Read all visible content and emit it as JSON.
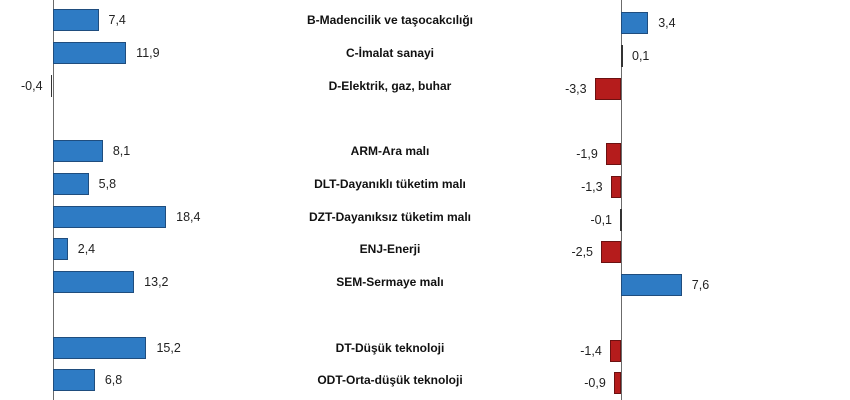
{
  "chart_data": {
    "type": "bar",
    "orientation": "horizontal",
    "title": "",
    "categories": [
      "B-Madencilik ve taşocakcılığı",
      "C-İmalat sanayi",
      "D-Elektrik, gaz, buhar",
      "",
      "ARM-Ara malı",
      "DLT-Dayanıklı tüketim malı",
      "DZT-Dayanıksız tüketim malı",
      "ENJ-Enerji",
      "SEM-Sermaye malı",
      "",
      "DT-Düşük teknoloji",
      "ODT-Orta-düşük teknoloji"
    ],
    "series": [
      {
        "name": "left panel",
        "values": [
          7.4,
          11.9,
          -0.4,
          null,
          8.1,
          5.8,
          18.4,
          2.4,
          13.2,
          null,
          15.2,
          6.8
        ],
        "labels": [
          "7,4",
          "11,9",
          "-0,4",
          "",
          "8,1",
          "5,8",
          "18,4",
          "2,4",
          "13,2",
          "",
          "15,2",
          "6,8"
        ]
      },
      {
        "name": "right panel",
        "values": [
          3.4,
          0.1,
          -3.3,
          null,
          -1.9,
          -1.3,
          -0.1,
          -2.5,
          7.6,
          null,
          -1.4,
          -0.9
        ],
        "labels": [
          "3,4",
          "0,1",
          "-3,3",
          "",
          "-1,9",
          "-1,3",
          "-0,1",
          "-2,5",
          "7,6",
          "",
          "-1,4",
          "-0,9"
        ]
      }
    ],
    "colors": {
      "positive": "#2e7bc4",
      "negative": "#b51c1c"
    },
    "xlabel": "",
    "ylabel": "",
    "grid": false,
    "legend": null
  }
}
